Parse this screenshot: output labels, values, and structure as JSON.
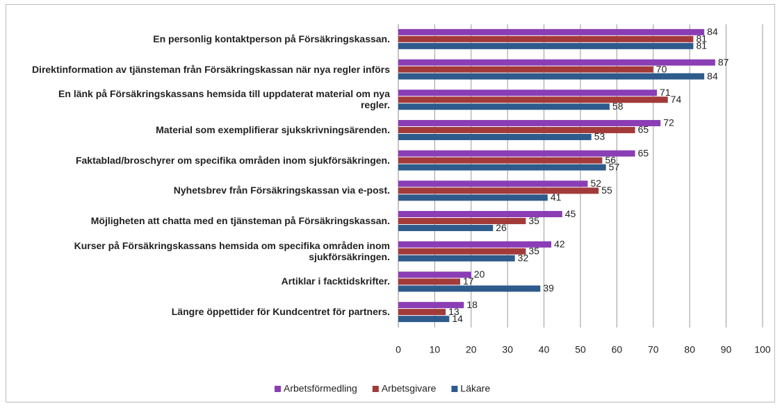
{
  "chart_data": {
    "type": "bar",
    "orientation": "horizontal",
    "categories": [
      "En personlig kontaktperson på Försäkringskassan.",
      "Direktinformation av tjänsteman från Försäkringskassan när nya regler införs",
      "En länk på Försäkringskassans hemsida till uppdaterat material om nya regler.",
      "Material som exemplifierar sjukskrivningsärenden.",
      "Faktablad/broschyrer om specifika områden inom sjukförsäkringen.",
      "Nyhetsbrev från Försäkringskassan via e-post.",
      "Möjligheten att chatta med en tjänsteman på Försäkringskassan.",
      "Kurser på Försäkringskassans hemsida om specifika områden inom sjukförsäkringen.",
      "Artiklar i facktidskrifter.",
      "Längre öppettider för Kundcentret för partners."
    ],
    "series": [
      {
        "name": "Arbetsförmedling",
        "color": "#8a3db5",
        "values": [
          84,
          87,
          71,
          72,
          65,
          52,
          45,
          42,
          20,
          18
        ]
      },
      {
        "name": "Arbetsgivare",
        "color": "#a33a3a",
        "values": [
          81,
          70,
          74,
          65,
          56,
          55,
          35,
          35,
          17,
          13
        ]
      },
      {
        "name": "Läkare",
        "color": "#2e5a8c",
        "values": [
          81,
          84,
          58,
          53,
          57,
          41,
          26,
          32,
          39,
          14
        ]
      }
    ],
    "xlim": [
      0,
      100
    ],
    "xticks": [
      0,
      10,
      20,
      30,
      40,
      50,
      60,
      70,
      80,
      90,
      100
    ],
    "grid": true,
    "legend": "bottom"
  }
}
